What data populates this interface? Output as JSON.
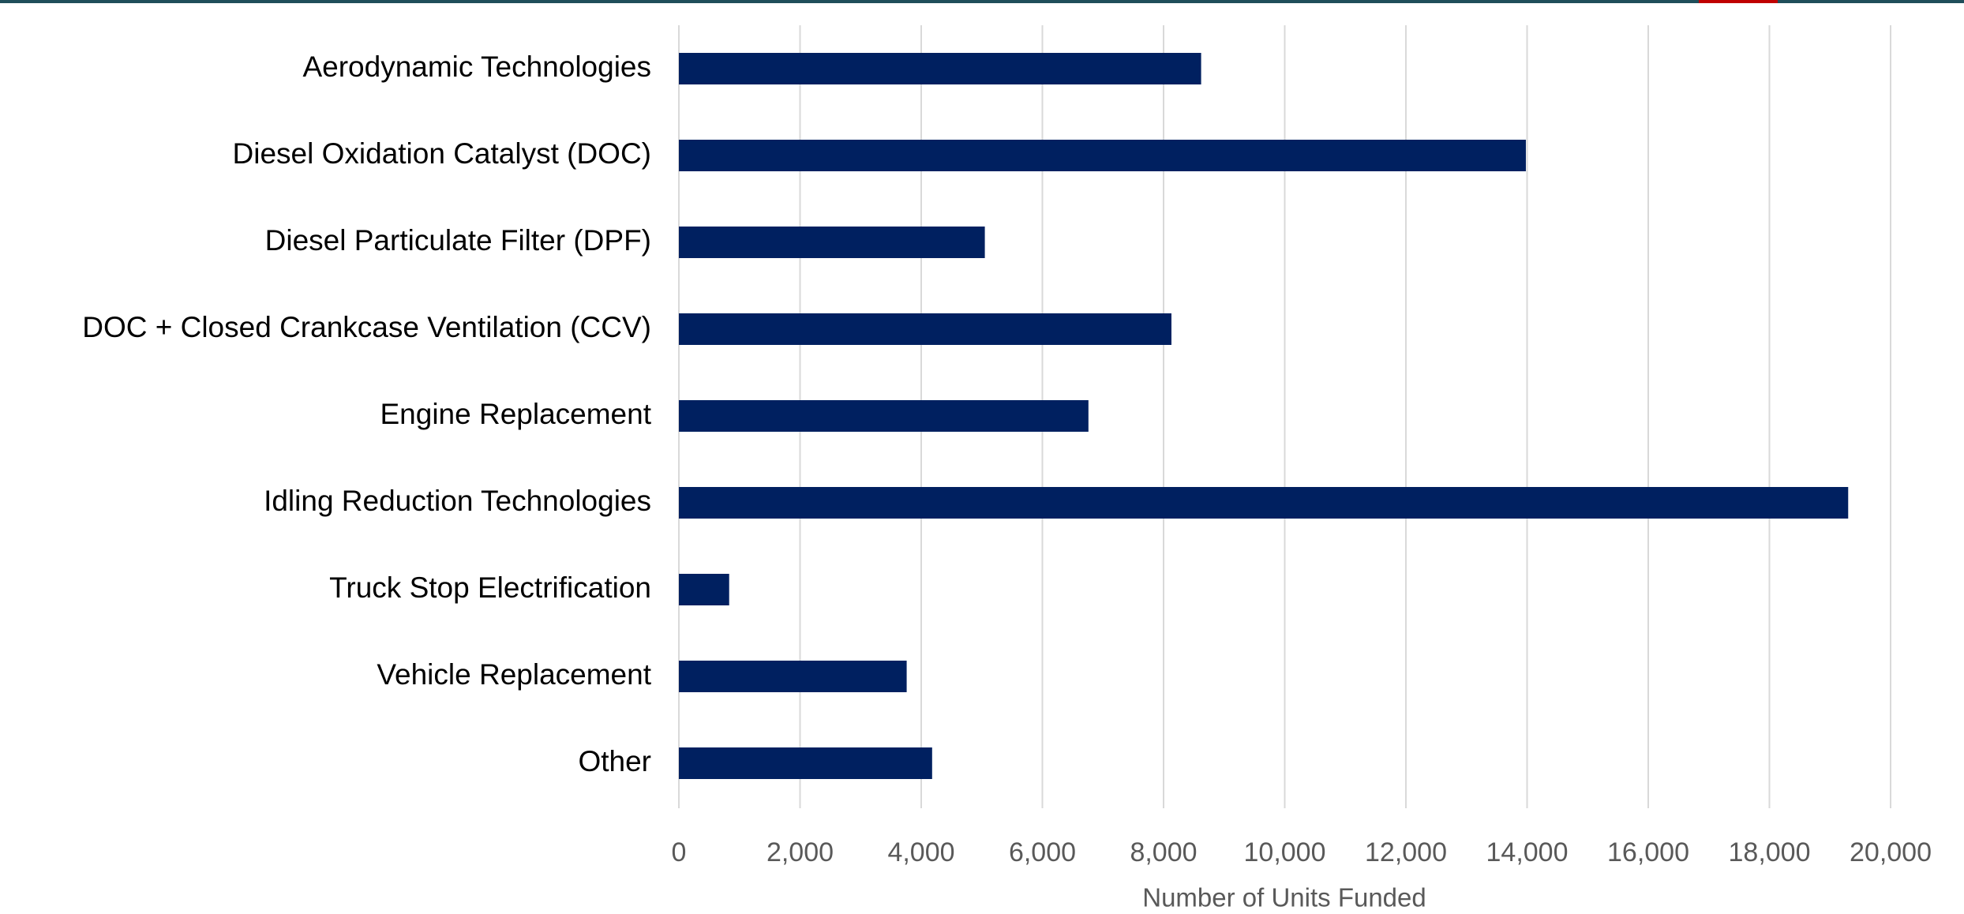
{
  "chart_data": {
    "type": "barh",
    "categories": [
      "Aerodynamic Technologies",
      "Diesel Oxidation Catalyst (DOC)",
      "Diesel Particulate Filter (DPF)",
      "DOC + Closed Crankcase Ventilation (CCV)",
      "Engine Replacement",
      "Idling Reduction Technologies",
      "Truck Stop Electrification",
      "Vehicle Replacement",
      "Other"
    ],
    "values": [
      8620,
      13980,
      5050,
      8130,
      6760,
      19300,
      830,
      3760,
      4180
    ],
    "color": "#002060",
    "xlabel": "Number of Units Funded",
    "xlim": [
      0,
      20000
    ],
    "xticks": [
      0,
      {
        "value": 2000,
        "label": "2,000"
      },
      {
        "value": 4000,
        "label": "4,000"
      },
      {
        "value": 6000,
        "label": "6,000"
      },
      {
        "value": 8000,
        "label": "8,000"
      },
      {
        "value": 10000,
        "label": "10,000"
      },
      {
        "value": 12000,
        "label": "12,000"
      },
      {
        "value": 14000,
        "label": "14,000"
      },
      {
        "value": 16000,
        "label": "16,000"
      },
      {
        "value": 18000,
        "label": "18,000"
      },
      {
        "value": 20000,
        "label": "20,000"
      }
    ],
    "grid": true
  }
}
